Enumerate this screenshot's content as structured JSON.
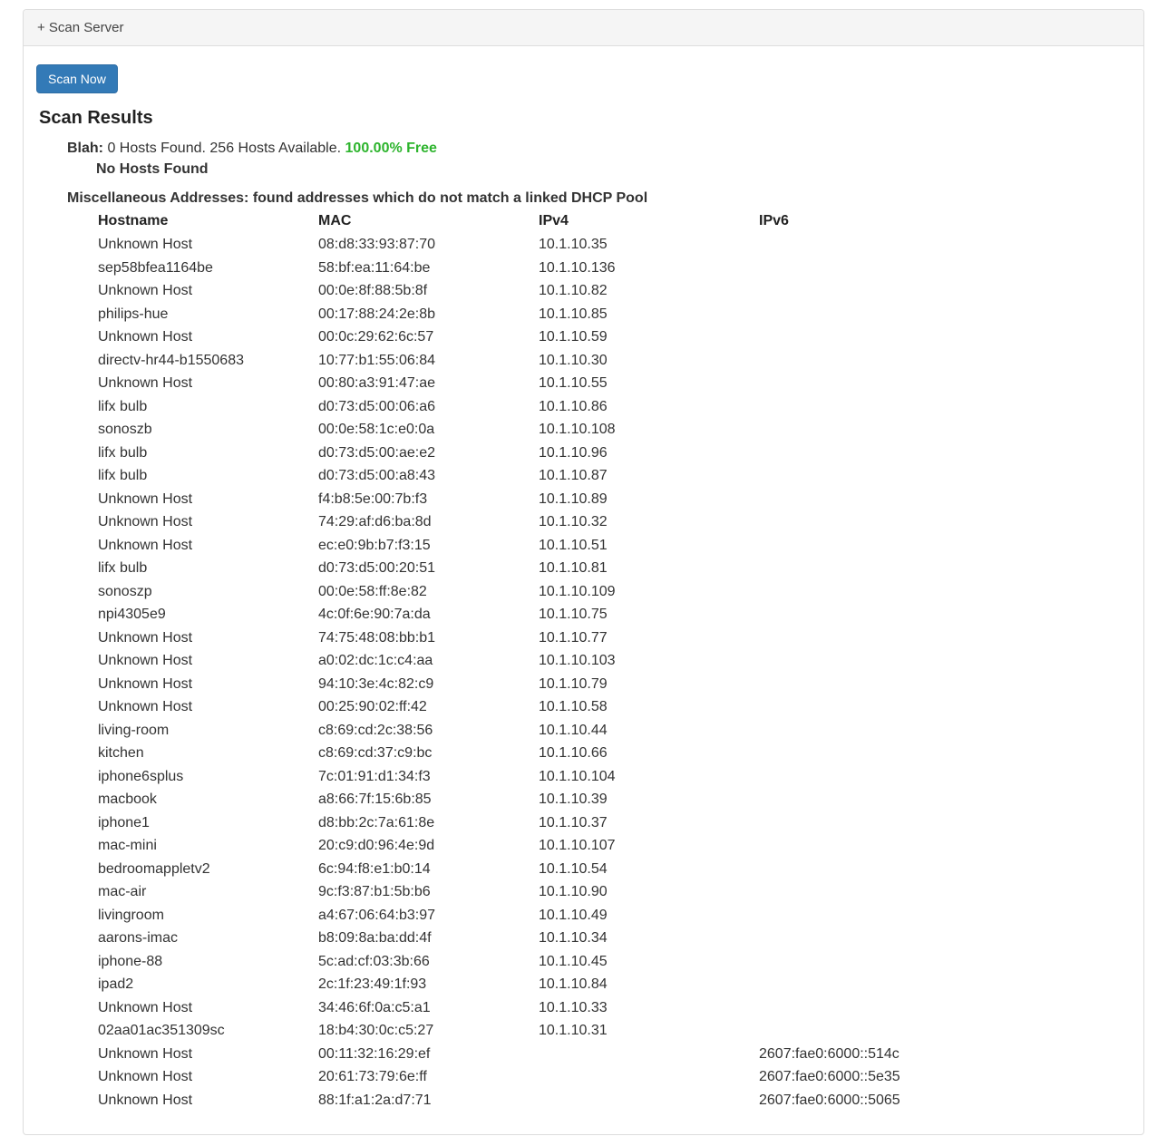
{
  "colors": {
    "accent_blue": "#337ab7",
    "success_green": "#2db42d",
    "heading_bg": "#f5f5f5",
    "border": "#dddddd"
  },
  "panel": {
    "header_label": "+ Scan Server"
  },
  "toolbar": {
    "scan_now_label": "Scan Now"
  },
  "results": {
    "title": "Scan Results",
    "pool_label": "Blah:",
    "pool_text": " 0 Hosts Found. 256 Hosts Available. ",
    "pool_free": "100.00% Free",
    "no_hosts": "No Hosts Found",
    "misc_heading": "Miscellaneous Addresses: found addresses which do not match a linked DHCP Pool"
  },
  "table": {
    "columns": [
      "Hostname",
      "MAC",
      "IPv4",
      "IPv6"
    ],
    "rows": [
      {
        "hostname": "Unknown Host",
        "mac": "08:d8:33:93:87:70",
        "ipv4": "10.1.10.35",
        "ipv6": ""
      },
      {
        "hostname": "sep58bfea1164be",
        "mac": "58:bf:ea:11:64:be",
        "ipv4": "10.1.10.136",
        "ipv6": ""
      },
      {
        "hostname": "Unknown Host",
        "mac": "00:0e:8f:88:5b:8f",
        "ipv4": "10.1.10.82",
        "ipv6": ""
      },
      {
        "hostname": "philips-hue",
        "mac": "00:17:88:24:2e:8b",
        "ipv4": "10.1.10.85",
        "ipv6": ""
      },
      {
        "hostname": "Unknown Host",
        "mac": "00:0c:29:62:6c:57",
        "ipv4": "10.1.10.59",
        "ipv6": ""
      },
      {
        "hostname": "directv-hr44-b1550683",
        "mac": "10:77:b1:55:06:84",
        "ipv4": "10.1.10.30",
        "ipv6": ""
      },
      {
        "hostname": "Unknown Host",
        "mac": "00:80:a3:91:47:ae",
        "ipv4": "10.1.10.55",
        "ipv6": ""
      },
      {
        "hostname": "lifx bulb",
        "mac": "d0:73:d5:00:06:a6",
        "ipv4": "10.1.10.86",
        "ipv6": ""
      },
      {
        "hostname": "sonoszb",
        "mac": "00:0e:58:1c:e0:0a",
        "ipv4": "10.1.10.108",
        "ipv6": ""
      },
      {
        "hostname": "lifx bulb",
        "mac": "d0:73:d5:00:ae:e2",
        "ipv4": "10.1.10.96",
        "ipv6": ""
      },
      {
        "hostname": "lifx bulb",
        "mac": "d0:73:d5:00:a8:43",
        "ipv4": "10.1.10.87",
        "ipv6": ""
      },
      {
        "hostname": "Unknown Host",
        "mac": "f4:b8:5e:00:7b:f3",
        "ipv4": "10.1.10.89",
        "ipv6": ""
      },
      {
        "hostname": "Unknown Host",
        "mac": "74:29:af:d6:ba:8d",
        "ipv4": "10.1.10.32",
        "ipv6": ""
      },
      {
        "hostname": "Unknown Host",
        "mac": "ec:e0:9b:b7:f3:15",
        "ipv4": "10.1.10.51",
        "ipv6": ""
      },
      {
        "hostname": "lifx bulb",
        "mac": "d0:73:d5:00:20:51",
        "ipv4": "10.1.10.81",
        "ipv6": ""
      },
      {
        "hostname": "sonoszp",
        "mac": "00:0e:58:ff:8e:82",
        "ipv4": "10.1.10.109",
        "ipv6": ""
      },
      {
        "hostname": "npi4305e9",
        "mac": "4c:0f:6e:90:7a:da",
        "ipv4": "10.1.10.75",
        "ipv6": ""
      },
      {
        "hostname": "Unknown Host",
        "mac": "74:75:48:08:bb:b1",
        "ipv4": "10.1.10.77",
        "ipv6": ""
      },
      {
        "hostname": "Unknown Host",
        "mac": "a0:02:dc:1c:c4:aa",
        "ipv4": "10.1.10.103",
        "ipv6": ""
      },
      {
        "hostname": "Unknown Host",
        "mac": "94:10:3e:4c:82:c9",
        "ipv4": "10.1.10.79",
        "ipv6": ""
      },
      {
        "hostname": "Unknown Host",
        "mac": "00:25:90:02:ff:42",
        "ipv4": "10.1.10.58",
        "ipv6": ""
      },
      {
        "hostname": "living-room",
        "mac": "c8:69:cd:2c:38:56",
        "ipv4": "10.1.10.44",
        "ipv6": ""
      },
      {
        "hostname": "kitchen",
        "mac": "c8:69:cd:37:c9:bc",
        "ipv4": "10.1.10.66",
        "ipv6": ""
      },
      {
        "hostname": "iphone6splus",
        "mac": "7c:01:91:d1:34:f3",
        "ipv4": "10.1.10.104",
        "ipv6": ""
      },
      {
        "hostname": "macbook",
        "mac": "a8:66:7f:15:6b:85",
        "ipv4": "10.1.10.39",
        "ipv6": ""
      },
      {
        "hostname": "iphone1",
        "mac": "d8:bb:2c:7a:61:8e",
        "ipv4": "10.1.10.37",
        "ipv6": ""
      },
      {
        "hostname": "mac-mini",
        "mac": "20:c9:d0:96:4e:9d",
        "ipv4": "10.1.10.107",
        "ipv6": ""
      },
      {
        "hostname": "bedroomappletv2",
        "mac": "6c:94:f8:e1:b0:14",
        "ipv4": "10.1.10.54",
        "ipv6": ""
      },
      {
        "hostname": "mac-air",
        "mac": "9c:f3:87:b1:5b:b6",
        "ipv4": "10.1.10.90",
        "ipv6": ""
      },
      {
        "hostname": "livingroom",
        "mac": "a4:67:06:64:b3:97",
        "ipv4": "10.1.10.49",
        "ipv6": ""
      },
      {
        "hostname": "aarons-imac",
        "mac": "b8:09:8a:ba:dd:4f",
        "ipv4": "10.1.10.34",
        "ipv6": ""
      },
      {
        "hostname": "iphone-88",
        "mac": "5c:ad:cf:03:3b:66",
        "ipv4": "10.1.10.45",
        "ipv6": ""
      },
      {
        "hostname": "ipad2",
        "mac": "2c:1f:23:49:1f:93",
        "ipv4": "10.1.10.84",
        "ipv6": ""
      },
      {
        "hostname": "Unknown Host",
        "mac": "34:46:6f:0a:c5:a1",
        "ipv4": "10.1.10.33",
        "ipv6": ""
      },
      {
        "hostname": "02aa01ac351309sc",
        "mac": "18:b4:30:0c:c5:27",
        "ipv4": "10.1.10.31",
        "ipv6": ""
      },
      {
        "hostname": "Unknown Host",
        "mac": "00:11:32:16:29:ef",
        "ipv4": "",
        "ipv6": "2607:fae0:6000::514c"
      },
      {
        "hostname": "Unknown Host",
        "mac": "20:61:73:79:6e:ff",
        "ipv4": "",
        "ipv6": "2607:fae0:6000::5e35"
      },
      {
        "hostname": "Unknown Host",
        "mac": "88:1f:a1:2a:d7:71",
        "ipv4": "",
        "ipv6": "2607:fae0:6000::5065"
      }
    ]
  }
}
